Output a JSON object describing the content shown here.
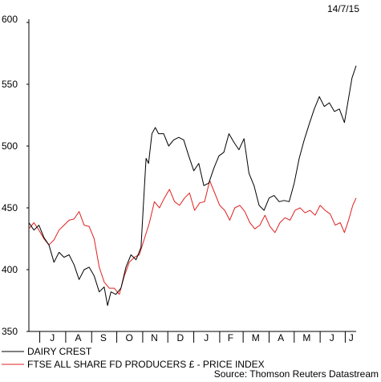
{
  "chart_data": {
    "type": "line",
    "date_label": "14/7/15",
    "source": "Source: Thomson Reuters Datastream",
    "y_axis": {
      "ylim": [
        350,
        600
      ],
      "ticks": [
        350,
        400,
        450,
        500,
        550,
        600
      ]
    },
    "x_axis": {
      "range": [
        "2014-06-18",
        "2015-07-14"
      ],
      "month_labels": [
        {
          "label": "J",
          "date": "2014-07-16"
        },
        {
          "label": "A",
          "date": "2014-08-16"
        },
        {
          "label": "S",
          "date": "2014-09-15"
        },
        {
          "label": "O",
          "date": "2014-10-16"
        },
        {
          "label": "N",
          "date": "2014-11-15"
        },
        {
          "label": "D",
          "date": "2014-12-16"
        },
        {
          "label": "J",
          "date": "2015-01-16"
        },
        {
          "label": "F",
          "date": "2015-02-14"
        },
        {
          "label": "M",
          "date": "2015-03-16"
        },
        {
          "label": "A",
          "date": "2015-04-15"
        },
        {
          "label": "M",
          "date": "2015-05-16"
        },
        {
          "label": "J",
          "date": "2015-06-15"
        },
        {
          "label": "J",
          "date": "2015-07-08"
        }
      ]
    },
    "series": [
      {
        "name": "DAIRY CREST",
        "color": "#000000",
        "points": [
          [
            "2014-06-18",
            438
          ],
          [
            "2014-06-24",
            432
          ],
          [
            "2014-06-30",
            436
          ],
          [
            "2014-07-06",
            426
          ],
          [
            "2014-07-12",
            420
          ],
          [
            "2014-07-18",
            406
          ],
          [
            "2014-07-24",
            414
          ],
          [
            "2014-07-30",
            410
          ],
          [
            "2014-08-05",
            412
          ],
          [
            "2014-08-11",
            404
          ],
          [
            "2014-08-17",
            392
          ],
          [
            "2014-08-23",
            400
          ],
          [
            "2014-08-29",
            402
          ],
          [
            "2014-09-04",
            395
          ],
          [
            "2014-09-10",
            382
          ],
          [
            "2014-09-16",
            386
          ],
          [
            "2014-09-20",
            371
          ],
          [
            "2014-09-24",
            382
          ],
          [
            "2014-09-30",
            380
          ],
          [
            "2014-10-06",
            385
          ],
          [
            "2014-10-12",
            402
          ],
          [
            "2014-10-18",
            412
          ],
          [
            "2014-10-24",
            408
          ],
          [
            "2014-10-30",
            418
          ],
          [
            "2014-11-02",
            455
          ],
          [
            "2014-11-05",
            490
          ],
          [
            "2014-11-08",
            486
          ],
          [
            "2014-11-12",
            510
          ],
          [
            "2014-11-16",
            515
          ],
          [
            "2014-11-20",
            510
          ],
          [
            "2014-11-26",
            510
          ],
          [
            "2014-12-02",
            500
          ],
          [
            "2014-12-08",
            505
          ],
          [
            "2014-12-14",
            507
          ],
          [
            "2014-12-20",
            505
          ],
          [
            "2014-12-26",
            492
          ],
          [
            "2015-01-01",
            480
          ],
          [
            "2015-01-07",
            486
          ],
          [
            "2015-01-13",
            468
          ],
          [
            "2015-01-19",
            470
          ],
          [
            "2015-01-25",
            482
          ],
          [
            "2015-01-31",
            492
          ],
          [
            "2015-02-06",
            495
          ],
          [
            "2015-02-12",
            510
          ],
          [
            "2015-02-18",
            503
          ],
          [
            "2015-02-24",
            497
          ],
          [
            "2015-03-02",
            506
          ],
          [
            "2015-03-08",
            478
          ],
          [
            "2015-03-14",
            468
          ],
          [
            "2015-03-20",
            452
          ],
          [
            "2015-03-26",
            448
          ],
          [
            "2015-04-01",
            458
          ],
          [
            "2015-04-07",
            460
          ],
          [
            "2015-04-13",
            455
          ],
          [
            "2015-04-19",
            456
          ],
          [
            "2015-04-25",
            455
          ],
          [
            "2015-05-01",
            470
          ],
          [
            "2015-05-07",
            490
          ],
          [
            "2015-05-13",
            505
          ],
          [
            "2015-05-19",
            518
          ],
          [
            "2015-05-25",
            530
          ],
          [
            "2015-05-31",
            540
          ],
          [
            "2015-06-06",
            532
          ],
          [
            "2015-06-12",
            535
          ],
          [
            "2015-06-18",
            528
          ],
          [
            "2015-06-24",
            530
          ],
          [
            "2015-06-30",
            519
          ],
          [
            "2015-07-04",
            535
          ],
          [
            "2015-07-09",
            555
          ],
          [
            "2015-07-14",
            565
          ]
        ]
      },
      {
        "name": "FTSE ALL SHARE FD PRODUCERS £ - PRICE INDEX",
        "color": "#e02020",
        "points": [
          [
            "2014-06-18",
            433
          ],
          [
            "2014-06-24",
            438
          ],
          [
            "2014-06-30",
            432
          ],
          [
            "2014-07-06",
            425
          ],
          [
            "2014-07-12",
            420
          ],
          [
            "2014-07-18",
            424
          ],
          [
            "2014-07-24",
            432
          ],
          [
            "2014-07-30",
            436
          ],
          [
            "2014-08-05",
            440
          ],
          [
            "2014-08-11",
            441
          ],
          [
            "2014-08-17",
            447
          ],
          [
            "2014-08-23",
            436
          ],
          [
            "2014-08-29",
            435
          ],
          [
            "2014-09-04",
            425
          ],
          [
            "2014-09-10",
            402
          ],
          [
            "2014-09-16",
            390
          ],
          [
            "2014-09-22",
            385
          ],
          [
            "2014-09-28",
            385
          ],
          [
            "2014-10-04",
            380
          ],
          [
            "2014-10-10",
            395
          ],
          [
            "2014-10-16",
            406
          ],
          [
            "2014-10-22",
            410
          ],
          [
            "2014-10-28",
            412
          ],
          [
            "2014-11-03",
            425
          ],
          [
            "2014-11-09",
            438
          ],
          [
            "2014-11-15",
            455
          ],
          [
            "2014-11-21",
            450
          ],
          [
            "2014-11-27",
            458
          ],
          [
            "2014-12-03",
            465
          ],
          [
            "2014-12-09",
            455
          ],
          [
            "2014-12-15",
            452
          ],
          [
            "2014-12-21",
            458
          ],
          [
            "2014-12-27",
            462
          ],
          [
            "2015-01-02",
            448
          ],
          [
            "2015-01-08",
            454
          ],
          [
            "2015-01-14",
            455
          ],
          [
            "2015-01-20",
            472
          ],
          [
            "2015-01-26",
            462
          ],
          [
            "2015-02-01",
            452
          ],
          [
            "2015-02-07",
            448
          ],
          [
            "2015-02-13",
            440
          ],
          [
            "2015-02-19",
            450
          ],
          [
            "2015-02-25",
            452
          ],
          [
            "2015-03-03",
            447
          ],
          [
            "2015-03-09",
            438
          ],
          [
            "2015-03-15",
            433
          ],
          [
            "2015-03-21",
            436
          ],
          [
            "2015-03-27",
            444
          ],
          [
            "2015-04-02",
            435
          ],
          [
            "2015-04-08",
            430
          ],
          [
            "2015-04-14",
            438
          ],
          [
            "2015-04-20",
            442
          ],
          [
            "2015-04-26",
            440
          ],
          [
            "2015-05-02",
            448
          ],
          [
            "2015-05-08",
            450
          ],
          [
            "2015-05-14",
            446
          ],
          [
            "2015-05-20",
            448
          ],
          [
            "2015-05-26",
            444
          ],
          [
            "2015-06-01",
            452
          ],
          [
            "2015-06-07",
            448
          ],
          [
            "2015-06-13",
            445
          ],
          [
            "2015-06-19",
            436
          ],
          [
            "2015-06-25",
            438
          ],
          [
            "2015-06-30",
            430
          ],
          [
            "2015-07-05",
            440
          ],
          [
            "2015-07-10",
            452
          ],
          [
            "2015-07-14",
            458
          ]
        ]
      }
    ]
  }
}
